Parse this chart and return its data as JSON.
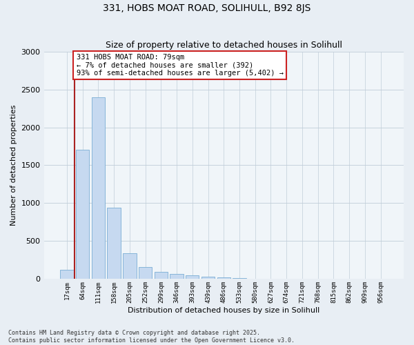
{
  "title": "331, HOBS MOAT ROAD, SOLIHULL, B92 8JS",
  "subtitle": "Size of property relative to detached houses in Solihull",
  "xlabel": "Distribution of detached houses by size in Solihull",
  "ylabel": "Number of detached properties",
  "categories": [
    "17sqm",
    "64sqm",
    "111sqm",
    "158sqm",
    "205sqm",
    "252sqm",
    "299sqm",
    "346sqm",
    "393sqm",
    "439sqm",
    "486sqm",
    "533sqm",
    "580sqm",
    "627sqm",
    "674sqm",
    "721sqm",
    "768sqm",
    "815sqm",
    "862sqm",
    "909sqm",
    "956sqm"
  ],
  "values": [
    125,
    1700,
    2400,
    940,
    340,
    160,
    95,
    65,
    45,
    28,
    18,
    10,
    5,
    3,
    1,
    0,
    0,
    0,
    0,
    0,
    0
  ],
  "bar_color": "#c6d9f0",
  "bar_edge_color": "#7aadd4",
  "vline_color": "#aa2222",
  "vline_bar_index": 1,
  "annotation_text": "331 HOBS MOAT ROAD: 79sqm\n← 7% of detached houses are smaller (392)\n93% of semi-detached houses are larger (5,402) →",
  "annotation_box_facecolor": "white",
  "annotation_box_edgecolor": "#cc2222",
  "footnote": "Contains HM Land Registry data © Crown copyright and database right 2025.\nContains public sector information licensed under the Open Government Licence v3.0.",
  "ylim": [
    0,
    3000
  ],
  "yticks": [
    0,
    500,
    1000,
    1500,
    2000,
    2500,
    3000
  ],
  "bg_color": "#e8eef4",
  "plot_bg_color": "#f0f5f9",
  "grid_color": "#c0cdd8",
  "title_fontsize": 10,
  "subtitle_fontsize": 9,
  "ylabel_fontsize": 8,
  "xlabel_fontsize": 8,
  "ytick_fontsize": 8,
  "xtick_fontsize": 6.5,
  "annotation_fontsize": 7.5,
  "footnote_fontsize": 6
}
